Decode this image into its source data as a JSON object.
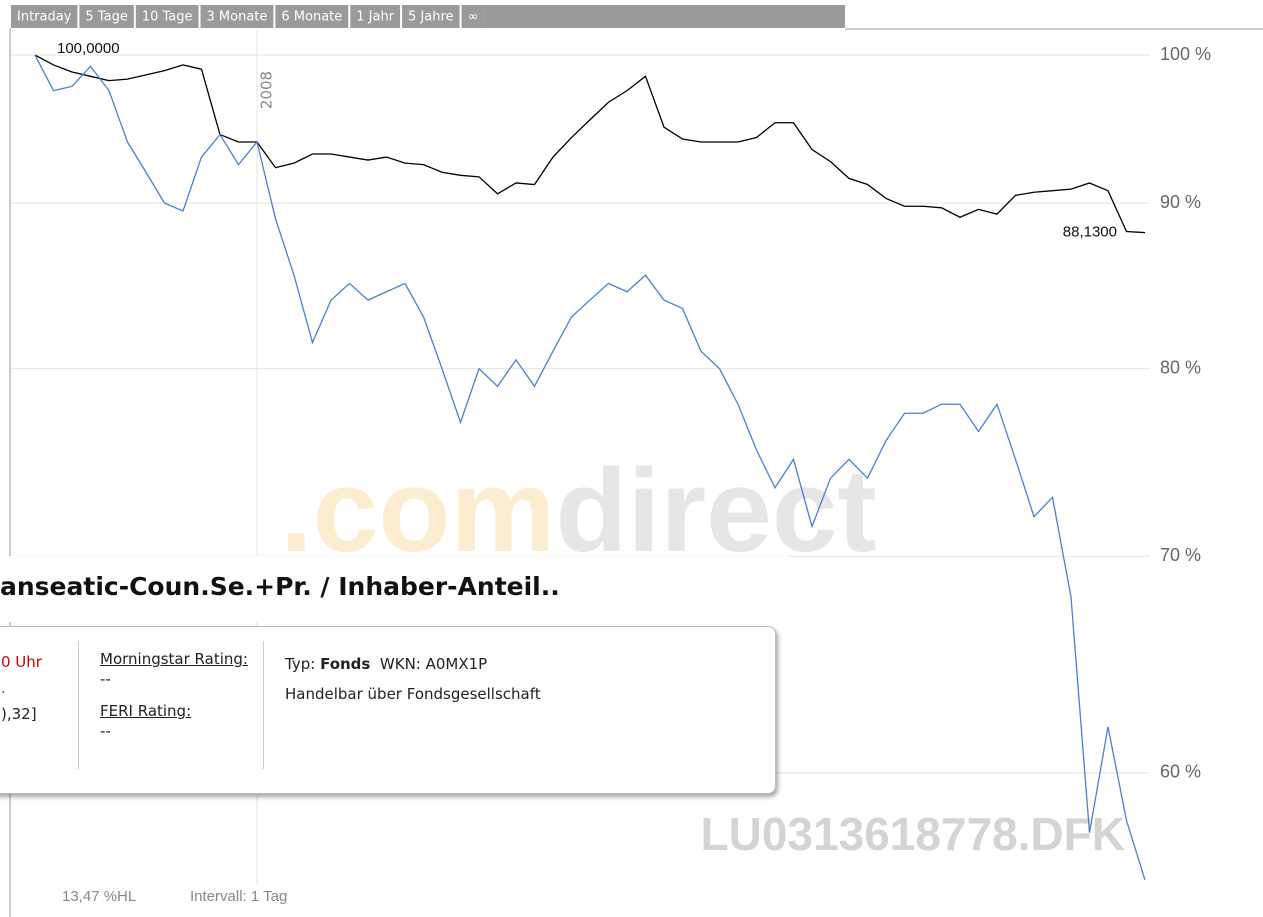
{
  "tabs": [
    "Intraday",
    "5 Tage",
    "10 Tage",
    "3 Monate",
    "6 Monate",
    "1 Jahr",
    "5 Jahre",
    "∞"
  ],
  "chart_data": {
    "type": "line",
    "log_scale": true,
    "grid": true,
    "categories": [
      null,
      null,
      null,
      null,
      null,
      null,
      null,
      null,
      null,
      null,
      null,
      null,
      "2008",
      null,
      null,
      null,
      null,
      null,
      null,
      null,
      null,
      null,
      null,
      null,
      null,
      null,
      null,
      null,
      null,
      null,
      null,
      null,
      null,
      null,
      null,
      null,
      null,
      null,
      null,
      null,
      null,
      null,
      null,
      null,
      null,
      null,
      null,
      null,
      null,
      null,
      null,
      null,
      null,
      null,
      null,
      null,
      null,
      null,
      null,
      null,
      null
    ],
    "series": [
      {
        "color": "#000000",
        "values": [
          100,
          99.3,
          98.8,
          98.5,
          98.2,
          98.3,
          98.6,
          98.9,
          99.3,
          99,
          94.5,
          94,
          94,
          92.3,
          92.6,
          93.2,
          93.2,
          93,
          92.8,
          93,
          92.6,
          92.5,
          92,
          91.8,
          91.7,
          90.6,
          91.3,
          91.2,
          93,
          94.3,
          95.5,
          96.7,
          97.5,
          98.5,
          95,
          94.2,
          94,
          94,
          94,
          94.3,
          95.3,
          95.3,
          93.5,
          92.7,
          91.6,
          91.2,
          90.3,
          89.8,
          89.8,
          89.7,
          89.1,
          89.6,
          89.3,
          90.5,
          90.7,
          90.8,
          90.9,
          91.3,
          90.8,
          88.2,
          88.13
        ],
        "value_labels": [
          "100,0000",
          null,
          null,
          null,
          null,
          null,
          null,
          null,
          null,
          null,
          null,
          null,
          null,
          null,
          null,
          null,
          null,
          null,
          null,
          null,
          null,
          null,
          null,
          null,
          null,
          null,
          null,
          null,
          null,
          null,
          null,
          null,
          null,
          null,
          null,
          null,
          null,
          null,
          null,
          null,
          null,
          null,
          null,
          null,
          null,
          null,
          null,
          null,
          null,
          null,
          null,
          null,
          null,
          null,
          null,
          null,
          null,
          null,
          null,
          null,
          "88,1300"
        ]
      },
      {
        "color": "#4a7fd4",
        "values": [
          100,
          97.5,
          97.8,
          99.2,
          97.5,
          94,
          92,
          90,
          89.5,
          93,
          94.5,
          92.5,
          94,
          89,
          85.5,
          81.5,
          84,
          85,
          84,
          84.5,
          85,
          83,
          80,
          77,
          80,
          79,
          80.5,
          79,
          81,
          83,
          84,
          85,
          84.5,
          85.5,
          84,
          83.5,
          81,
          80,
          78,
          75.5,
          73.5,
          75,
          71.5,
          74,
          75,
          74,
          76,
          77.5,
          77.5,
          78,
          78,
          76.5,
          78,
          75,
          72,
          73,
          68,
          57.5,
          62,
          58,
          55.6
        ]
      }
    ],
    "ylim": [
      55.4,
      101.8
    ],
    "yticks": [
      {
        "value": 100,
        "label": "100 %"
      },
      {
        "value": 90,
        "label": "90 %"
      },
      {
        "value": 80,
        "label": "80 %"
      },
      {
        "value": 70,
        "label": "70 %"
      },
      {
        "value": 60,
        "label": "60 %"
      }
    ]
  },
  "watermark": {
    "brand_a": ".com",
    "brand_b": "direct",
    "id": "LU0313618778.DFK"
  },
  "footer": {
    "range": "13,47 %HL",
    "interval": "Intervall: 1 Tag"
  },
  "popup": {
    "title": "anseatic-Coun.Se.+Pr. / Inhaber-Anteil..",
    "col1": [
      "0 Uhr",
      ".",
      "),32]"
    ],
    "rating_label": "Morningstar Rating:",
    "rating_value": "--",
    "feri_label": "FERI Rating:",
    "feri_value": "--",
    "type_label": "Typ:",
    "type_value": "Fonds",
    "wkn": "WKN: A0MX1P",
    "trade": "Handelbar über Fondsgesellschaft"
  }
}
